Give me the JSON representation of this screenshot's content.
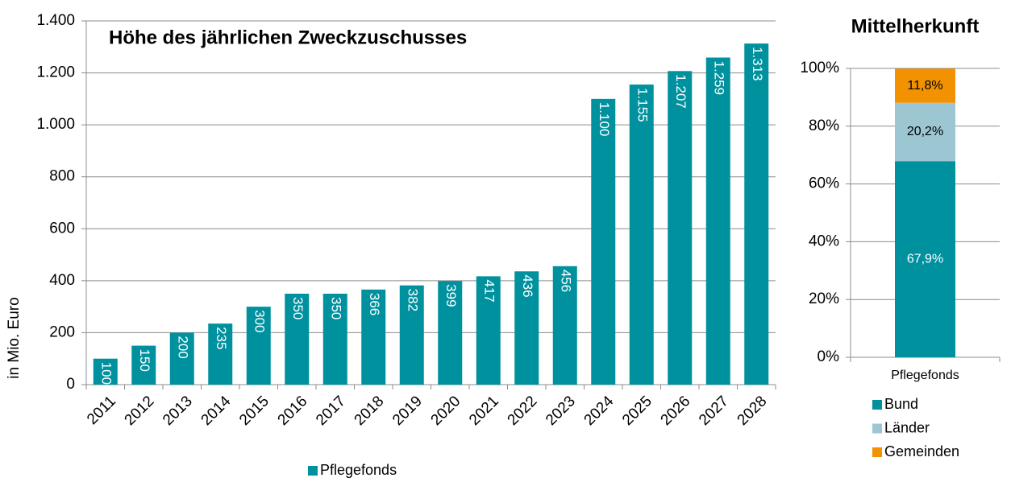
{
  "chart_data": [
    {
      "type": "bar",
      "title": "Höhe des jährlichen Zweckzuschusses",
      "y_label": "in Mio. Euro",
      "categories": [
        "2011",
        "2012",
        "2013",
        "2014",
        "2015",
        "2016",
        "2017",
        "2018",
        "2019",
        "2020",
        "2021",
        "2022",
        "2023",
        "2024",
        "2025",
        "2026",
        "2027",
        "2028"
      ],
      "series": [
        {
          "name": "Pflegefonds",
          "color": "#00919f",
          "values": [
            100,
            150,
            200,
            235,
            300,
            350,
            350,
            366,
            382,
            399,
            417,
            436,
            456,
            1100,
            1155,
            1207,
            1259,
            1313
          ],
          "value_labels": [
            "100",
            "150",
            "200",
            "235",
            "300",
            "350",
            "350",
            "366",
            "382",
            "399",
            "417",
            "436",
            "456",
            "1.100",
            "1.155",
            "1.207",
            "1.259",
            "1.313"
          ]
        }
      ],
      "ylim": [
        0,
        1400
      ],
      "yticks": [
        0,
        200,
        400,
        600,
        800,
        {
          "value": 1000,
          "label": "1.000"
        },
        {
          "value": 1200,
          "label": "1.200"
        },
        {
          "value": 1400,
          "label": "1.400"
        }
      ],
      "grid": true,
      "legend": "bottom"
    },
    {
      "type": "bar",
      "stacked": true,
      "title": "Mittelherkunft",
      "categories": [
        "Pflegefonds"
      ],
      "series": [
        {
          "name": "Bund",
          "color": "#00919f",
          "values": [
            67.9
          ],
          "value_labels": [
            "67,9%"
          ]
        },
        {
          "name": "Länder",
          "color": "#9cc7d2",
          "values": [
            20.2
          ],
          "value_labels": [
            "20,2%"
          ]
        },
        {
          "name": "Gemeinden",
          "color": "#f39200",
          "values": [
            11.8
          ],
          "value_labels": [
            "11,8%"
          ]
        }
      ],
      "ylim": [
        0,
        100
      ],
      "yticks": [
        {
          "value": 0,
          "label": "0%"
        },
        {
          "value": 20,
          "label": "20%"
        },
        {
          "value": 40,
          "label": "40%"
        },
        {
          "value": 60,
          "label": "60%"
        },
        {
          "value": 80,
          "label": "80%"
        },
        {
          "value": 100,
          "label": "100%"
        }
      ],
      "grid": true,
      "legend": "right"
    }
  ]
}
